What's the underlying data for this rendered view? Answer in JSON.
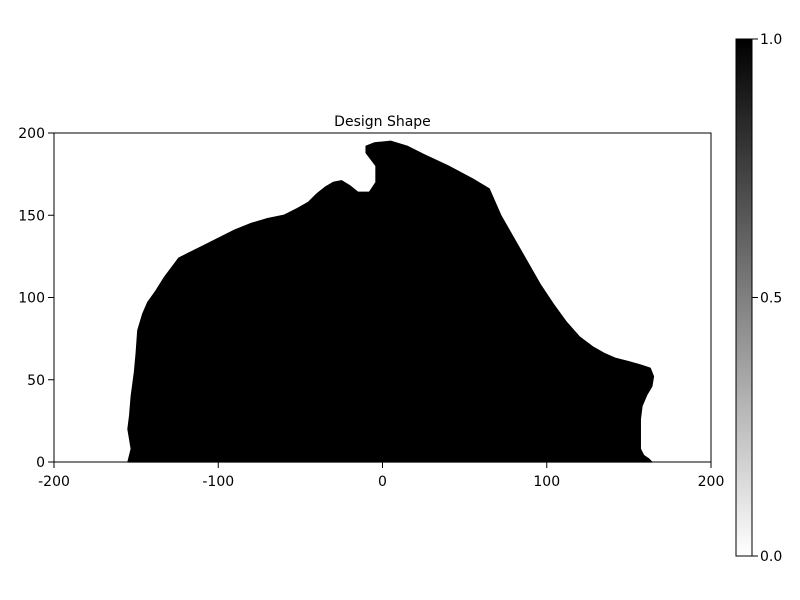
{
  "chart_data": {
    "type": "heatmap",
    "title": "Design Shape",
    "xlabel": "",
    "ylabel": "",
    "xlim": [
      -200,
      200
    ],
    "ylim": [
      0,
      200
    ],
    "x_ticks": [
      -200,
      -100,
      0,
      100,
      200
    ],
    "y_ticks": [
      0,
      50,
      100,
      150,
      200
    ],
    "x_tick_labels": [
      "-200",
      "-100",
      "0",
      "100",
      "200"
    ],
    "y_tick_labels": [
      "0",
      "50",
      "100",
      "150",
      "200"
    ],
    "grid": false,
    "colormap": "grays",
    "colorbar": {
      "range": [
        0.0,
        1.0
      ],
      "ticks": [
        0.0,
        0.5,
        1.0
      ],
      "tick_labels": [
        "0.0",
        "0.5",
        "1.0"
      ],
      "low_color": "#ffffff",
      "high_color": "#000000"
    },
    "shape_value": 1.0,
    "background_value": 0.0,
    "shape_boundary": [
      [
        -155,
        0
      ],
      [
        -154,
        4
      ],
      [
        -153,
        8
      ],
      [
        -154,
        14
      ],
      [
        -155,
        20
      ],
      [
        -154,
        28
      ],
      [
        -153,
        40
      ],
      [
        -151,
        55
      ],
      [
        -150,
        66
      ],
      [
        -149,
        80
      ],
      [
        -146,
        90
      ],
      [
        -143,
        97
      ],
      [
        -138,
        104
      ],
      [
        -133,
        112
      ],
      [
        -127,
        120
      ],
      [
        -124,
        124
      ],
      [
        -118,
        127
      ],
      [
        -110,
        131
      ],
      [
        -100,
        136
      ],
      [
        -90,
        141
      ],
      [
        -80,
        145
      ],
      [
        -70,
        148
      ],
      [
        -60,
        150
      ],
      [
        -52,
        154
      ],
      [
        -45,
        158
      ],
      [
        -40,
        163
      ],
      [
        -35,
        167
      ],
      [
        -30,
        170
      ],
      [
        -25,
        171
      ],
      [
        -20,
        168
      ],
      [
        -15,
        164
      ],
      [
        -8,
        164
      ],
      [
        -4,
        170
      ],
      [
        -4,
        180
      ],
      [
        -10,
        188
      ],
      [
        -10,
        192
      ],
      [
        -5,
        194
      ],
      [
        5,
        195
      ],
      [
        15,
        192
      ],
      [
        25,
        187
      ],
      [
        40,
        180
      ],
      [
        55,
        172
      ],
      [
        65,
        166
      ],
      [
        72,
        150
      ],
      [
        80,
        136
      ],
      [
        88,
        122
      ],
      [
        96,
        108
      ],
      [
        104,
        96
      ],
      [
        112,
        85
      ],
      [
        120,
        76
      ],
      [
        128,
        70
      ],
      [
        135,
        66
      ],
      [
        142,
        63
      ],
      [
        150,
        61
      ],
      [
        157,
        59
      ],
      [
        163,
        57
      ],
      [
        165,
        52
      ],
      [
        164,
        46
      ],
      [
        161,
        41
      ],
      [
        158,
        34
      ],
      [
        157,
        26
      ],
      [
        157,
        18
      ],
      [
        157,
        8
      ],
      [
        159,
        4
      ],
      [
        162,
        2
      ],
      [
        164,
        0
      ]
    ]
  }
}
